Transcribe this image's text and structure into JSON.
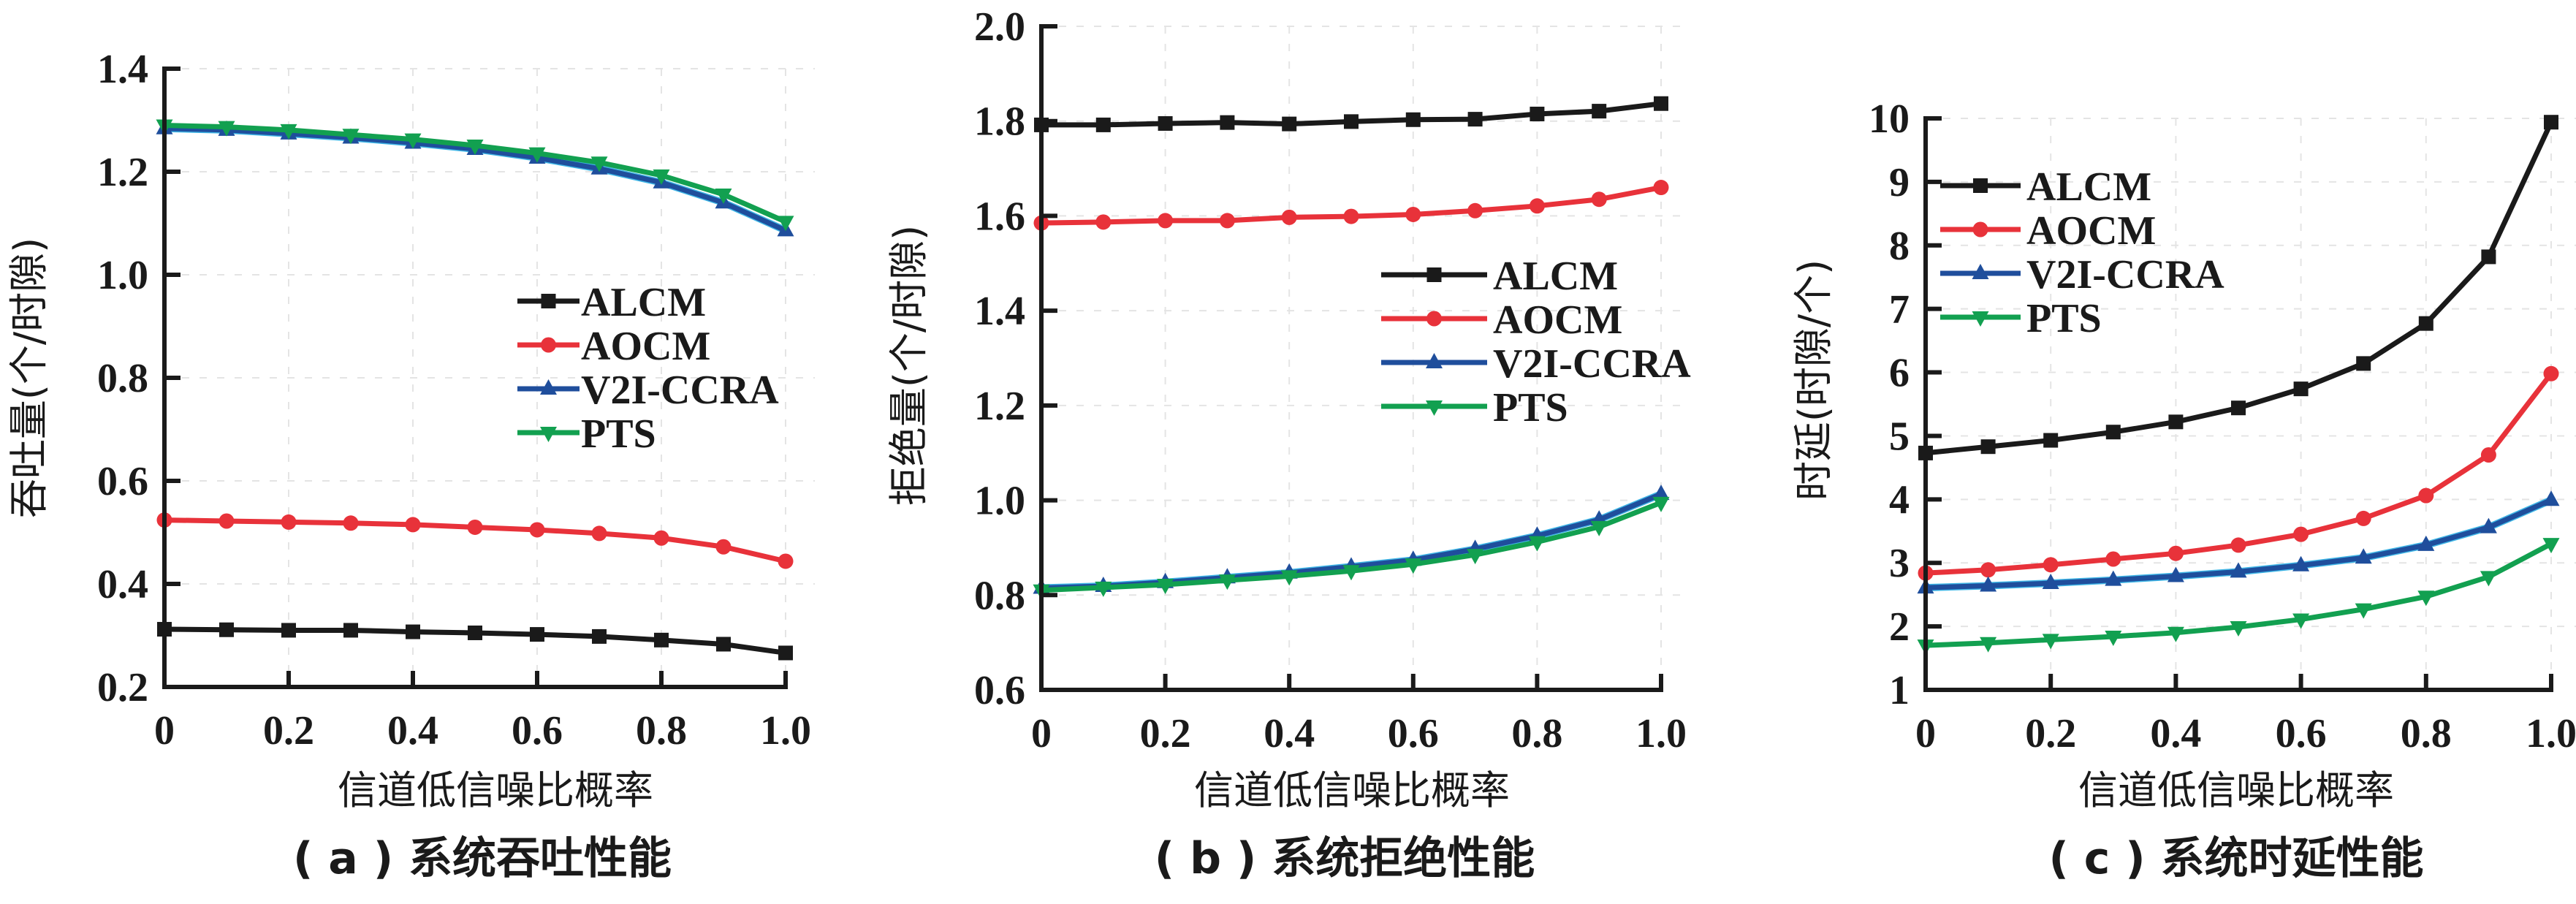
{
  "figure": {
    "series_names": [
      "ALCM",
      "AOCM",
      "V2I-CCRA",
      "PTS"
    ],
    "series_colors": {
      "ALCM": "#1a1a1a",
      "AOCM": "#e8323a",
      "V2I-CCRA": "#1f4e9c",
      "PTS": "#12a050"
    },
    "series_markers": {
      "ALCM": "square",
      "AOCM": "circle",
      "V2I-CCRA": "triangle-up",
      "PTS": "triangle-down"
    }
  },
  "chart_data": [
    {
      "id": "a",
      "type": "line",
      "title": "",
      "caption": "( a ) 系统吞吐性能",
      "xlabel": "信道低信噪比概率",
      "ylabel": "吞吐量(个/时隙)",
      "x": [
        0,
        0.1,
        0.2,
        0.3,
        0.4,
        0.5,
        0.6,
        0.7,
        0.8,
        0.9,
        1.0
      ],
      "xlim": [
        0,
        1.0
      ],
      "ylim": [
        0.2,
        1.4
      ],
      "xticks": [
        0,
        0.2,
        0.4,
        0.6,
        0.8,
        1.0
      ],
      "xtick_labels": [
        "0",
        "0.2",
        "0.4",
        "0.6",
        "0.8",
        "1.0"
      ],
      "yticks": [
        0.2,
        0.4,
        0.6,
        0.8,
        1.0,
        1.2,
        1.4
      ],
      "ytick_labels": [
        "0.2",
        "0.4",
        "0.6",
        "0.8",
        "1.0",
        "1.2",
        "1.4"
      ],
      "grid": true,
      "legend_position": "center-right",
      "series": [
        {
          "name": "ALCM",
          "values": [
            0.312,
            0.311,
            0.31,
            0.31,
            0.307,
            0.305,
            0.302,
            0.298,
            0.291,
            0.283,
            0.266
          ]
        },
        {
          "name": "AOCM",
          "values": [
            0.524,
            0.522,
            0.52,
            0.518,
            0.515,
            0.51,
            0.505,
            0.498,
            0.489,
            0.472,
            0.444
          ]
        },
        {
          "name": "V2I-CCRA",
          "values": [
            1.284,
            1.281,
            1.274,
            1.266,
            1.256,
            1.244,
            1.227,
            1.206,
            1.179,
            1.14,
            1.086
          ]
        },
        {
          "name": "PTS",
          "values": [
            1.29,
            1.287,
            1.281,
            1.272,
            1.263,
            1.251,
            1.236,
            1.218,
            1.193,
            1.156,
            1.103
          ]
        }
      ]
    },
    {
      "id": "b",
      "type": "line",
      "title": "",
      "caption": "( b ) 系统拒绝性能",
      "xlabel": "信道低信噪比概率",
      "ylabel": "拒绝量(个/时隙)",
      "x": [
        0,
        0.1,
        0.2,
        0.3,
        0.4,
        0.5,
        0.6,
        0.7,
        0.8,
        0.9,
        1.0
      ],
      "xlim": [
        0,
        1.0
      ],
      "ylim": [
        0.6,
        2.0
      ],
      "xticks": [
        0,
        0.2,
        0.4,
        0.6,
        0.8,
        1.0
      ],
      "xtick_labels": [
        "0",
        "0.2",
        "0.4",
        "0.6",
        "0.8",
        "1.0"
      ],
      "yticks": [
        0.6,
        0.8,
        1.0,
        1.2,
        1.4,
        1.6,
        1.8,
        2.0
      ],
      "ytick_labels": [
        "0.6",
        "0.8",
        "1.0",
        "1.2",
        "1.4",
        "1.6",
        "1.8",
        "2.0"
      ],
      "grid": true,
      "legend_position": "center-right",
      "series": [
        {
          "name": "ALCM",
          "values": [
            1.792,
            1.792,
            1.795,
            1.797,
            1.794,
            1.799,
            1.803,
            1.804,
            1.815,
            1.821,
            1.837
          ]
        },
        {
          "name": "AOCM",
          "values": [
            1.585,
            1.587,
            1.59,
            1.59,
            1.597,
            1.599,
            1.603,
            1.611,
            1.621,
            1.635,
            1.66
          ]
        },
        {
          "name": "V2I-CCRA",
          "values": [
            0.815,
            0.819,
            0.827,
            0.837,
            0.847,
            0.86,
            0.874,
            0.897,
            0.925,
            0.959,
            1.013
          ]
        },
        {
          "name": "PTS",
          "values": [
            0.81,
            0.816,
            0.822,
            0.831,
            0.84,
            0.851,
            0.865,
            0.885,
            0.912,
            0.944,
            0.995
          ]
        }
      ]
    },
    {
      "id": "c",
      "type": "line",
      "title": "",
      "caption": "( c ) 系统时延性能",
      "xlabel": "信道低信噪比概率",
      "ylabel": "时延(时隙/个)",
      "x": [
        0,
        0.1,
        0.2,
        0.3,
        0.4,
        0.5,
        0.6,
        0.7,
        0.8,
        0.9,
        1.0
      ],
      "xlim": [
        0,
        1.0
      ],
      "ylim": [
        1,
        10
      ],
      "xticks": [
        0,
        0.2,
        0.4,
        0.6,
        0.8,
        1.0
      ],
      "xtick_labels": [
        "0",
        "0.2",
        "0.4",
        "0.6",
        "0.8",
        "1.0"
      ],
      "yticks": [
        1,
        2,
        3,
        4,
        5,
        6,
        7,
        8,
        9,
        10
      ],
      "ytick_labels": [
        "1",
        "2",
        "3",
        "4",
        "5",
        "6",
        "7",
        "8",
        "9",
        "10"
      ],
      "grid": true,
      "legend_position": "top-left",
      "series": [
        {
          "name": "ALCM",
          "values": [
            4.73,
            4.83,
            4.93,
            5.06,
            5.22,
            5.44,
            5.74,
            6.14,
            6.77,
            7.82,
            9.94
          ]
        },
        {
          "name": "AOCM",
          "values": [
            2.84,
            2.89,
            2.97,
            3.06,
            3.15,
            3.28,
            3.45,
            3.7,
            4.06,
            4.7,
            5.98
          ]
        },
        {
          "name": "V2I-CCRA",
          "values": [
            2.61,
            2.64,
            2.68,
            2.73,
            2.79,
            2.86,
            2.96,
            3.08,
            3.28,
            3.56,
            3.99
          ]
        },
        {
          "name": "PTS",
          "values": [
            1.7,
            1.74,
            1.79,
            1.84,
            1.9,
            1.99,
            2.11,
            2.27,
            2.47,
            2.78,
            3.3
          ]
        }
      ]
    }
  ]
}
